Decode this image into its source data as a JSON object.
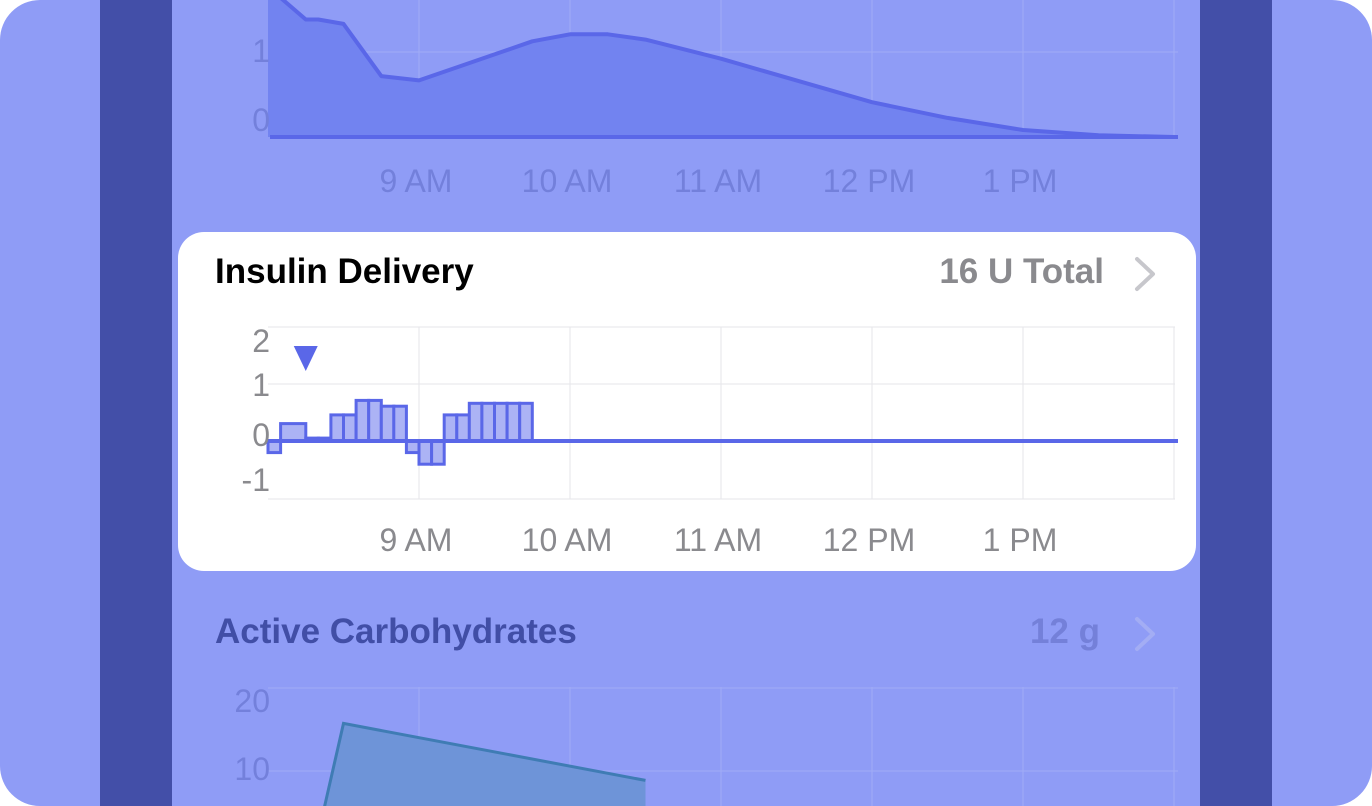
{
  "colors": {
    "background": "#8f9cf6",
    "side_strip": "#434fa8",
    "card": "#ffffff",
    "accent": "#5a67e8",
    "dimmed_title": "#414ea6",
    "dimmed_value": "#7480d9",
    "carb_fill": "#6e94d8",
    "carb_stroke": "#3f7cb4",
    "tick_dim": "#7380db",
    "tick": "#8a8a8e"
  },
  "active_insulin": {
    "chart_data": {
      "type": "area",
      "x": [
        "8:00 AM",
        "8:05 AM",
        "8:15 AM",
        "8:20 AM",
        "8:30 AM",
        "8:45 AM",
        "9:00 AM",
        "9:15 AM",
        "9:30 AM",
        "9:45 AM",
        "10:00 AM",
        "10:15 AM",
        "10:30 AM",
        "11:00 AM",
        "11:30 AM",
        "12:00 PM",
        "12:30 PM",
        "1:00 PM",
        "1:30 PM",
        "2:00 PM"
      ],
      "values": [
        1.65,
        1.6,
        1.35,
        1.35,
        1.3,
        0.7,
        0.65,
        0.8,
        0.95,
        1.1,
        1.18,
        1.18,
        1.12,
        0.9,
        0.65,
        0.4,
        0.22,
        0.08,
        0.02,
        0.0
      ],
      "ylim": [
        0,
        1.65
      ],
      "y_ticks": [
        "1",
        "0"
      ],
      "x_ticks": [
        "9 AM",
        "10 AM",
        "11 AM",
        "12 PM",
        "1 PM"
      ],
      "grid": true
    }
  },
  "insulin_delivery": {
    "title": "Insulin Delivery",
    "total": "16 U Total",
    "chevron_icon": "chevron-right-icon",
    "bolus_marker_icon": "bolus-triangle-icon",
    "chart_data": {
      "type": "bar",
      "categories": [
        "8:00 AM",
        "8:05 AM",
        "8:15 AM",
        "8:20 AM",
        "8:25 AM",
        "8:30 AM",
        "8:35 AM",
        "8:40 AM",
        "8:45 AM",
        "8:50 AM",
        "8:55 AM",
        "9:00 AM",
        "9:05 AM",
        "9:10 AM",
        "9:15 AM",
        "9:20 AM",
        "9:25 AM",
        "9:30 AM",
        "9:35 AM",
        "9:40 AM",
        "9:45 AM",
        "9:50 AM"
      ],
      "values": [
        -0.2,
        0.3,
        0.05,
        0.05,
        0.45,
        0.45,
        0.7,
        0.7,
        0.6,
        0.6,
        -0.2,
        -0.4,
        -0.4,
        0.45,
        0.45,
        0.65,
        0.65,
        0.65,
        0.65,
        0.65,
        0,
        0
      ],
      "ylim": [
        -1.3,
        2.4
      ],
      "y_ticks": [
        "2",
        "1",
        "0",
        "-1"
      ],
      "x_ticks": [
        "9 AM",
        "10 AM",
        "11 AM",
        "12 PM",
        "1 PM"
      ],
      "bolus": [
        {
          "time": "8:15 AM"
        }
      ],
      "grid": true
    }
  },
  "active_carbohydrates": {
    "title": "Active Carbohydrates",
    "value": "12 g",
    "chevron_icon": "chevron-right-icon",
    "chart_data": {
      "type": "area",
      "x": [
        "8:20 AM",
        "8:30 AM",
        "10:30 AM"
      ],
      "values": [
        0,
        16.5,
        8
      ],
      "ylim": [
        0,
        20
      ],
      "y_ticks": [
        "20",
        "10"
      ],
      "grid": true
    }
  }
}
